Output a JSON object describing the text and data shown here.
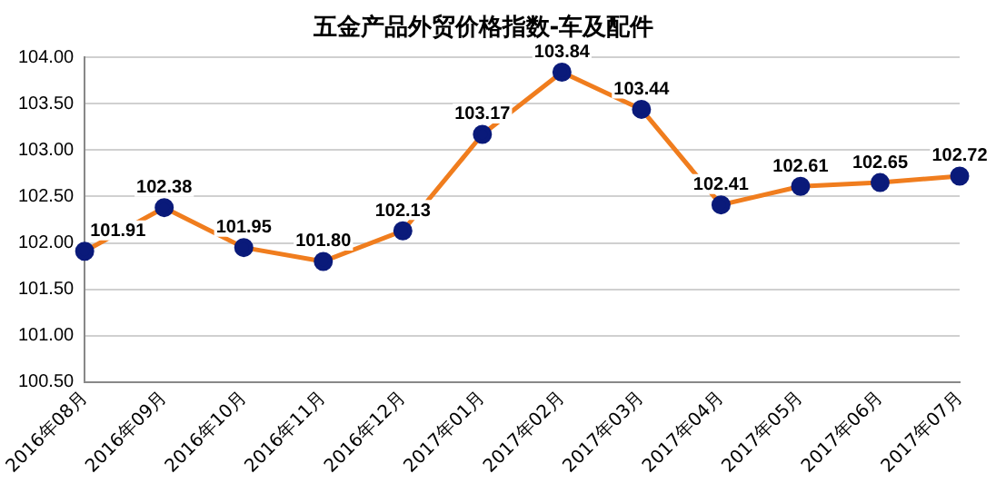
{
  "chart_data": {
    "type": "line",
    "title": "五金产品外贸价格指数-车及配件",
    "categories": [
      "2016年08月",
      "2016年09月",
      "2016年10月",
      "2016年11月",
      "2016年12月",
      "2017年01月",
      "2017年02月",
      "2017年03月",
      "2017年04月",
      "2017年05月",
      "2017年06月",
      "2017年07月"
    ],
    "series": [
      {
        "color": "#f07d1e",
        "colors": [
          "#0a1a7a",
          "#0a1a7a",
          "#0a1a7a",
          "#0a1a7a",
          "#0a1a7a",
          "#0a1a7a",
          "#0a1a7a",
          "#0a1a7a",
          "#0a1a7a",
          "#0a1a7a",
          "#0a1a7a",
          "#0a1a7a"
        ],
        "values": [
          101.91,
          102.38,
          101.95,
          101.8,
          102.13,
          103.17,
          103.84,
          103.44,
          102.41,
          102.61,
          102.65,
          102.72
        ],
        "value_labels": [
          "101.91",
          "102.38",
          "101.95",
          "101.80",
          "102.13",
          "103.17",
          "103.84",
          "103.44",
          "102.41",
          "102.61",
          "102.65",
          "102.72"
        ]
      }
    ],
    "ylim": [
      100.5,
      104.0
    ],
    "yticks": [
      {
        "value": 100.5,
        "label": "100.50"
      },
      {
        "value": 101,
        "label": "101.00"
      },
      {
        "value": 101.5,
        "label": "101.50"
      },
      {
        "value": 102,
        "label": "102.00"
      },
      {
        "value": 102.5,
        "label": "102.50"
      },
      {
        "value": 103,
        "label": "103.00"
      },
      {
        "value": 103.5,
        "label": "103.50"
      },
      {
        "value": 104,
        "label": "104.00"
      }
    ],
    "grid": "y",
    "legend": false,
    "marker": "circle",
    "line_style": "solid"
  }
}
